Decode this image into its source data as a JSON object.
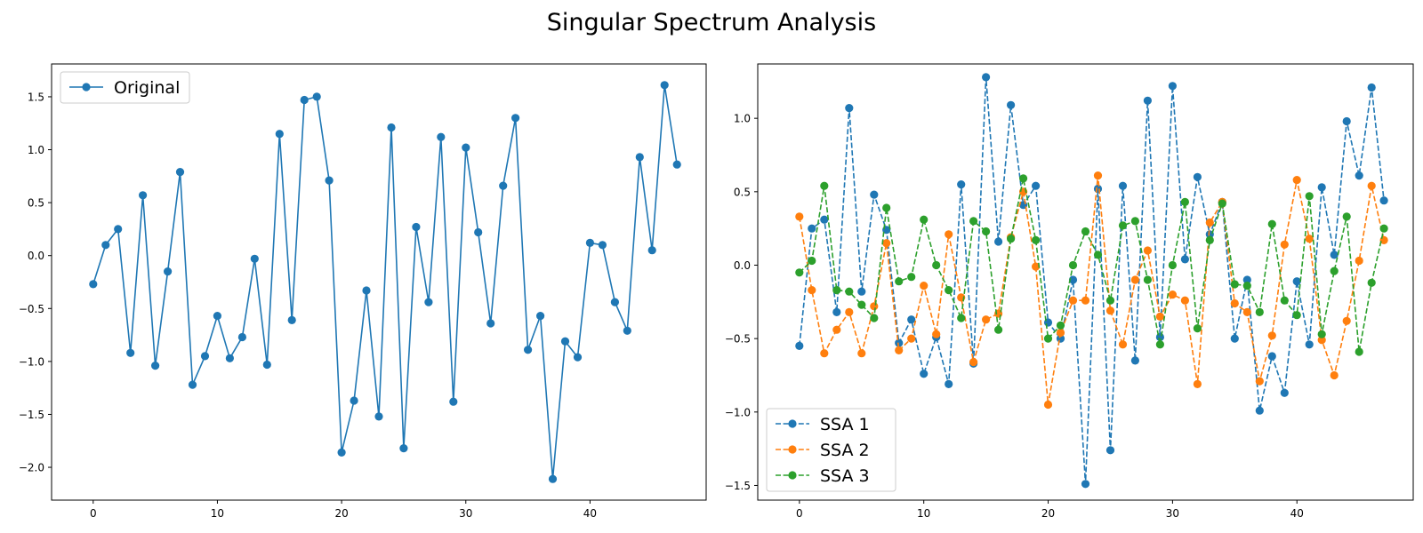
{
  "figure": {
    "title": "Singular Spectrum Analysis"
  },
  "colors": {
    "blue": "#1f77b4",
    "orange": "#ff7f0e",
    "green": "#2ca02c"
  },
  "chart_data": [
    {
      "type": "line",
      "title": "",
      "xlabel": "",
      "ylabel": "",
      "xlim": [
        -3.35,
        49.35
      ],
      "ylim": [
        -2.31,
        1.81
      ],
      "xticks": [
        0,
        10,
        20,
        30,
        40
      ],
      "yticks": [
        -2.0,
        -1.5,
        -1.0,
        -0.5,
        0.0,
        0.5,
        1.0,
        1.5
      ],
      "ytick_labels": [
        "−2.0",
        "−1.5",
        "−1.0",
        "−0.5",
        "0.0",
        "0.5",
        "1.0",
        "1.5"
      ],
      "legend_position": "upper left",
      "grid": false,
      "series": [
        {
          "name": "Original",
          "color": "#1f77b4",
          "linestyle": "solid",
          "marker": "circle",
          "values": [
            -0.27,
            0.1,
            0.25,
            -0.92,
            0.57,
            -1.04,
            -0.15,
            0.79,
            -1.22,
            -0.95,
            -0.57,
            -0.97,
            -0.77,
            -0.03,
            -1.03,
            1.15,
            -0.61,
            1.47,
            1.5,
            0.71,
            -1.86,
            -1.37,
            -0.33,
            -1.52,
            1.21,
            -1.82,
            0.27,
            -0.44,
            1.12,
            -1.38,
            1.02,
            0.22,
            -0.64,
            0.66,
            1.3,
            -0.89,
            -0.57,
            -2.11,
            -0.81,
            -0.96,
            0.12,
            0.1,
            -0.44,
            -0.71,
            0.93,
            0.05,
            1.61,
            0.86
          ]
        }
      ]
    },
    {
      "type": "line",
      "title": "",
      "xlabel": "",
      "ylabel": "",
      "xlim": [
        -3.35,
        49.35
      ],
      "ylim": [
        -1.6,
        1.37
      ],
      "xticks": [
        0,
        10,
        20,
        30,
        40
      ],
      "yticks": [
        -1.5,
        -1.0,
        -0.5,
        0.0,
        0.5,
        1.0
      ],
      "ytick_labels": [
        "−1.5",
        "−1.0",
        "−0.5",
        "0.0",
        "0.5",
        "1.0"
      ],
      "legend_position": "lower left",
      "grid": false,
      "series": [
        {
          "name": "SSA 1",
          "color": "#1f77b4",
          "linestyle": "dashed",
          "marker": "circle",
          "values": [
            -0.55,
            0.25,
            0.31,
            -0.32,
            1.07,
            -0.18,
            0.48,
            0.24,
            -0.53,
            -0.37,
            -0.74,
            -0.49,
            -0.81,
            0.55,
            -0.67,
            1.28,
            0.16,
            1.09,
            0.41,
            0.54,
            -0.39,
            -0.5,
            -0.1,
            -1.49,
            0.52,
            -1.26,
            0.54,
            -0.65,
            1.12,
            -0.49,
            1.22,
            0.04,
            0.6,
            0.21,
            0.43,
            -0.5,
            -0.1,
            -0.99,
            -0.62,
            -0.87,
            -0.11,
            -0.54,
            0.53,
            0.07,
            0.98,
            0.61,
            1.21,
            0.44
          ]
        },
        {
          "name": "SSA 2",
          "color": "#ff7f0e",
          "linestyle": "dashed",
          "marker": "circle",
          "values": [
            0.33,
            -0.17,
            -0.6,
            -0.44,
            -0.32,
            -0.6,
            -0.28,
            0.15,
            -0.58,
            -0.5,
            -0.14,
            -0.47,
            0.21,
            -0.22,
            -0.66,
            -0.37,
            -0.33,
            0.19,
            0.5,
            -0.01,
            -0.95,
            -0.46,
            -0.24,
            -0.24,
            0.61,
            -0.31,
            -0.54,
            -0.1,
            0.1,
            -0.35,
            -0.2,
            -0.24,
            -0.81,
            0.29,
            0.43,
            -0.26,
            -0.32,
            -0.79,
            -0.48,
            0.14,
            0.58,
            0.18,
            -0.51,
            -0.75,
            -0.38,
            0.03,
            0.54,
            0.17
          ]
        },
        {
          "name": "SSA 3",
          "color": "#2ca02c",
          "linestyle": "dashed",
          "marker": "circle",
          "values": [
            -0.05,
            0.03,
            0.54,
            -0.17,
            -0.18,
            -0.27,
            -0.36,
            0.39,
            -0.11,
            -0.08,
            0.31,
            0.0,
            -0.17,
            -0.36,
            0.3,
            0.23,
            -0.44,
            0.18,
            0.59,
            0.17,
            -0.5,
            -0.41,
            0.0,
            0.23,
            0.07,
            -0.24,
            0.27,
            0.3,
            -0.1,
            -0.54,
            0.0,
            0.43,
            -0.43,
            0.17,
            0.42,
            -0.13,
            -0.14,
            -0.32,
            0.28,
            -0.24,
            -0.34,
            0.47,
            -0.47,
            -0.04,
            0.33,
            -0.59,
            -0.12,
            0.25
          ]
        }
      ]
    }
  ]
}
